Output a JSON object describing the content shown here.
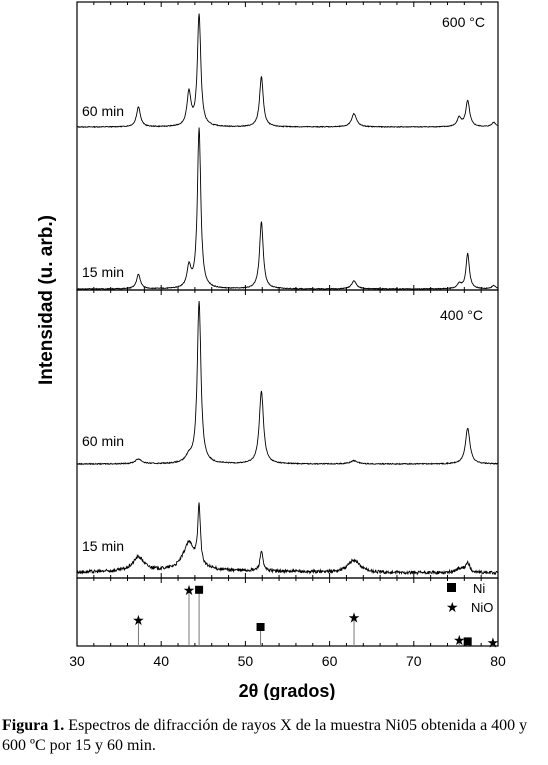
{
  "chart_data": {
    "type": "line",
    "ylabel": "Intensidad (u. arb.)",
    "xlabel": "2θ (grados)",
    "xlim": [
      30,
      80
    ],
    "xticks": [
      "30",
      "40",
      "50",
      "60",
      "70",
      "80"
    ],
    "panels": [
      {
        "label": "600 °C",
        "series": [
          {
            "name": "60 min",
            "peaks": [
              {
                "x": 37.3,
                "h": 0.18,
                "w": 0.28
              },
              {
                "x": 43.3,
                "h": 0.3,
                "w": 0.28
              },
              {
                "x": 44.5,
                "h": 1.0,
                "w": 0.24
              },
              {
                "x": 51.9,
                "h": 0.45,
                "w": 0.26
              },
              {
                "x": 62.9,
                "h": 0.12,
                "w": 0.35
              },
              {
                "x": 75.4,
                "h": 0.08,
                "w": 0.3
              },
              {
                "x": 76.4,
                "h": 0.23,
                "w": 0.28
              },
              {
                "x": 79.5,
                "h": 0.04,
                "w": 0.3
              }
            ]
          },
          {
            "name": "15 min",
            "peaks": [
              {
                "x": 37.3,
                "h": 0.09,
                "w": 0.28
              },
              {
                "x": 43.3,
                "h": 0.13,
                "w": 0.28
              },
              {
                "x": 44.5,
                "h": 1.0,
                "w": 0.24
              },
              {
                "x": 51.9,
                "h": 0.42,
                "w": 0.26
              },
              {
                "x": 62.9,
                "h": 0.05,
                "w": 0.35
              },
              {
                "x": 75.4,
                "h": 0.03,
                "w": 0.3
              },
              {
                "x": 76.4,
                "h": 0.22,
                "w": 0.24
              },
              {
                "x": 79.5,
                "h": 0.02,
                "w": 0.3
              }
            ]
          }
        ]
      },
      {
        "label": "400 °C",
        "series": [
          {
            "name": "60 min",
            "peaks": [
              {
                "x": 37.3,
                "h": 0.03,
                "w": 0.45
              },
              {
                "x": 43.3,
                "h": 0.04,
                "w": 0.45
              },
              {
                "x": 44.5,
                "h": 1.0,
                "w": 0.26
              },
              {
                "x": 51.9,
                "h": 0.45,
                "w": 0.3
              },
              {
                "x": 62.9,
                "h": 0.02,
                "w": 0.5
              },
              {
                "x": 76.4,
                "h": 0.22,
                "w": 0.32
              }
            ]
          },
          {
            "name": "15 min",
            "peaks": [
              {
                "x": 37.3,
                "h": 0.18,
                "w": 0.8
              },
              {
                "x": 43.3,
                "h": 0.35,
                "w": 0.85
              },
              {
                "x": 44.5,
                "h": 0.76,
                "w": 0.18
              },
              {
                "x": 51.9,
                "h": 0.26,
                "w": 0.2
              },
              {
                "x": 62.9,
                "h": 0.16,
                "w": 0.85
              },
              {
                "x": 76.4,
                "h": 0.12,
                "w": 0.3
              },
              {
                "x": 75.4,
                "h": 0.05,
                "w": 0.6
              }
            ]
          }
        ]
      }
    ],
    "reference": {
      "legend": [
        {
          "symbol": "square",
          "label": "Ni"
        },
        {
          "symbol": "star",
          "label": "NiO"
        }
      ],
      "lines": [
        {
          "phase": "NiO",
          "x": 37.3,
          "rel": 0.42
        },
        {
          "phase": "NiO",
          "x": 43.3,
          "rel": 0.92
        },
        {
          "phase": "Ni",
          "x": 44.5,
          "rel": 0.92
        },
        {
          "phase": "Ni",
          "x": 51.8,
          "rel": 0.3
        },
        {
          "phase": "NiO",
          "x": 62.9,
          "rel": 0.46
        },
        {
          "phase": "NiO",
          "x": 75.4,
          "rel": 0.08
        },
        {
          "phase": "Ni",
          "x": 76.4,
          "rel": 0.06
        },
        {
          "phase": "NiO",
          "x": 79.4,
          "rel": 0.04
        }
      ]
    }
  },
  "caption": {
    "label": "Figura 1.",
    "text": " Espectros de difracción de rayos X  de la muestra Ni05 obtenida a 400 y 600 ºC por 15 y 60 min."
  }
}
